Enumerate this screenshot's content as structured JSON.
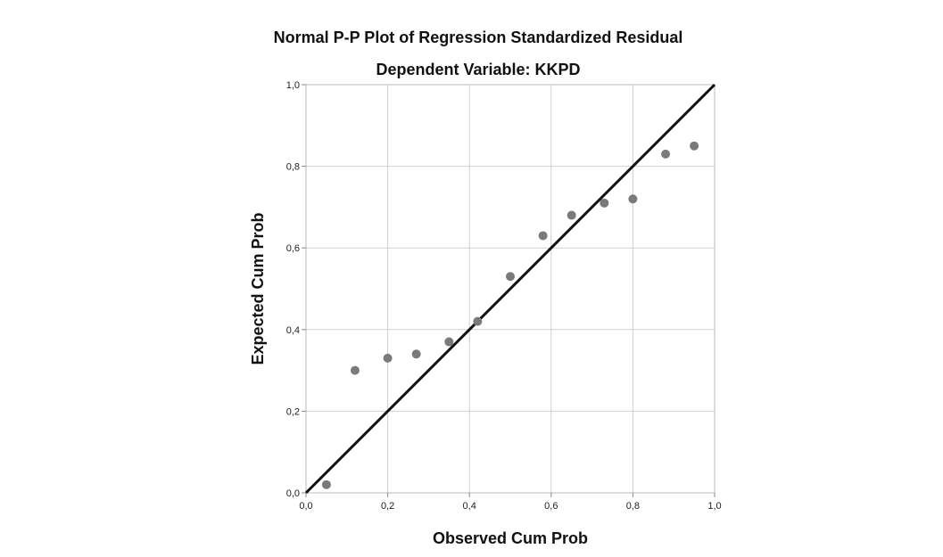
{
  "chart_data": {
    "type": "scatter",
    "title": "Normal P-P Plot of Regression Standardized Residual",
    "subtitle": "Dependent Variable: KKPD",
    "xlabel": "Observed Cum Prob",
    "ylabel": "Expected Cum Prob",
    "xlim": [
      0,
      1
    ],
    "ylim": [
      0,
      1
    ],
    "xticks": [
      "0,0",
      "0,2",
      "0,4",
      "0,6",
      "0,8",
      "1,0"
    ],
    "yticks": [
      "0,0",
      "0,2",
      "0,4",
      "0,6",
      "0,8",
      "1,0"
    ],
    "grid": true,
    "reference_line": {
      "from": [
        0,
        0
      ],
      "to": [
        1,
        1
      ]
    },
    "points": [
      {
        "x": 0.05,
        "y": 0.02
      },
      {
        "x": 0.12,
        "y": 0.3
      },
      {
        "x": 0.2,
        "y": 0.33
      },
      {
        "x": 0.27,
        "y": 0.34
      },
      {
        "x": 0.35,
        "y": 0.37
      },
      {
        "x": 0.42,
        "y": 0.42
      },
      {
        "x": 0.5,
        "y": 0.53
      },
      {
        "x": 0.58,
        "y": 0.63
      },
      {
        "x": 0.65,
        "y": 0.68
      },
      {
        "x": 0.73,
        "y": 0.71
      },
      {
        "x": 0.8,
        "y": 0.72
      },
      {
        "x": 0.88,
        "y": 0.83
      },
      {
        "x": 0.95,
        "y": 0.85
      }
    ]
  }
}
